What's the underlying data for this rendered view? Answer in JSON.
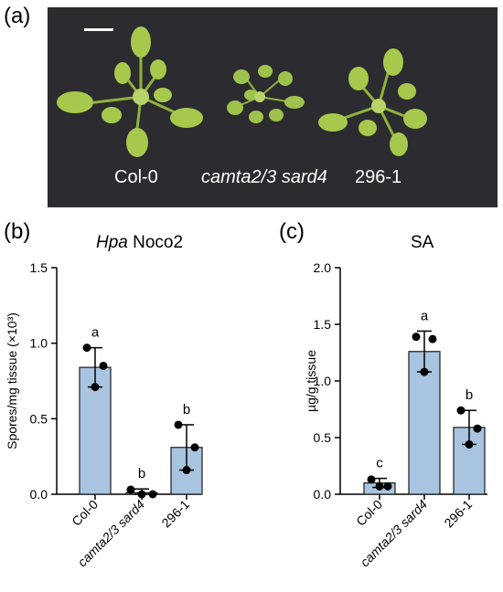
{
  "panels": {
    "a": {
      "letter": "(a)",
      "captions": [
        "Col-0",
        "camta2/3 sard4",
        "296-1"
      ]
    },
    "b": {
      "letter": "(b)"
    },
    "c": {
      "letter": "(c)"
    }
  },
  "colors": {
    "bar_fill": "#a9c4e0",
    "bar_stroke": "#1a1a1a",
    "dot": "#000000",
    "photo_bg": "#2c2b2f",
    "leaf": "#9cc24a"
  },
  "chart_data": [
    {
      "type": "bar",
      "title_italic": "Hpa",
      "title_rest": " Noco2",
      "ylabel": "Spores/mg tissue (×10³)",
      "categories": [
        "Col-0",
        "camta2/3 sard4",
        "296-1"
      ],
      "category_italic": [
        false,
        true,
        false
      ],
      "values": [
        0.84,
        0.01,
        0.31
      ],
      "errors": [
        0.13,
        0.025,
        0.15
      ],
      "points": [
        [
          0.97,
          0.85,
          0.71
        ],
        [
          0.03,
          0.0,
          0.0
        ],
        [
          0.46,
          0.31,
          0.16
        ]
      ],
      "letters": [
        "a",
        "b",
        "b"
      ],
      "ylim": [
        0,
        1.5
      ],
      "yticks": [
        "0.0",
        "0.5",
        "1.0",
        "1.5"
      ],
      "ytick_values": [
        0,
        0.5,
        1.0,
        1.5
      ],
      "grid": false
    },
    {
      "type": "bar",
      "title": "SA",
      "ylabel": "µg/g tissue",
      "categories": [
        "Col-0",
        "camta2/3 sard4",
        "296-1"
      ],
      "category_italic": [
        false,
        true,
        false
      ],
      "values": [
        0.1,
        1.26,
        0.59
      ],
      "errors": [
        0.04,
        0.18,
        0.15
      ],
      "points": [
        [
          0.13,
          0.07,
          0.07
        ],
        [
          1.39,
          1.37,
          1.08
        ],
        [
          0.74,
          0.58,
          0.44
        ]
      ],
      "letters": [
        "c",
        "a",
        "b"
      ],
      "ylim": [
        0,
        2.0
      ],
      "yticks": [
        "0.0",
        "0.5",
        "1.0",
        "1.5",
        "2.0"
      ],
      "ytick_values": [
        0,
        0.5,
        1.0,
        1.5,
        2.0
      ],
      "grid": false
    }
  ]
}
